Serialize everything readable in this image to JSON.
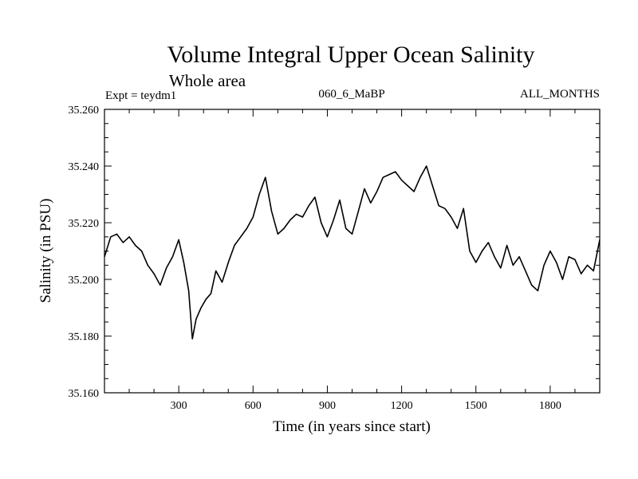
{
  "chart_data": {
    "type": "line",
    "title": "Volume Integral Upper Ocean Salinity",
    "subtitle": "Whole area",
    "left_label": "Expt = teydm1",
    "center_label": "060_6_MaBP",
    "right_label": "ALL_MONTHS",
    "xlabel": "Time (in years since start)",
    "ylabel": "Salinity (in PSU)",
    "xlim": [
      0,
      2000
    ],
    "ylim": [
      35.16,
      35.26
    ],
    "x_ticks": [
      300,
      600,
      900,
      1200,
      1500,
      1800
    ],
    "x_tick_labels": [
      "300",
      "600",
      "900",
      "1200",
      "1500",
      "1800"
    ],
    "y_ticks": [
      35.16,
      35.18,
      35.2,
      35.22,
      35.24,
      35.26
    ],
    "y_tick_labels": [
      "35.160",
      "35.180",
      "35.200",
      "35.220",
      "35.240",
      "35.260"
    ],
    "series": [
      {
        "name": "salinity",
        "x": [
          0,
          25,
          50,
          75,
          100,
          125,
          150,
          175,
          200,
          225,
          250,
          275,
          300,
          320,
          340,
          355,
          370,
          390,
          410,
          430,
          450,
          475,
          500,
          525,
          550,
          575,
          600,
          625,
          650,
          675,
          700,
          725,
          750,
          775,
          800,
          825,
          850,
          875,
          900,
          925,
          950,
          975,
          1000,
          1025,
          1050,
          1075,
          1100,
          1125,
          1150,
          1175,
          1200,
          1225,
          1250,
          1275,
          1300,
          1325,
          1350,
          1375,
          1400,
          1425,
          1450,
          1475,
          1500,
          1525,
          1550,
          1575,
          1600,
          1625,
          1650,
          1675,
          1700,
          1725,
          1750,
          1775,
          1800,
          1825,
          1850,
          1875,
          1900,
          1925,
          1950,
          1975,
          2000
        ],
        "values": [
          35.208,
          35.215,
          35.216,
          35.213,
          35.215,
          35.212,
          35.21,
          35.205,
          35.202,
          35.198,
          35.204,
          35.208,
          35.214,
          35.206,
          35.196,
          35.179,
          35.186,
          35.19,
          35.193,
          35.195,
          35.203,
          35.199,
          35.206,
          35.212,
          35.215,
          35.218,
          35.222,
          35.23,
          35.236,
          35.224,
          35.216,
          35.218,
          35.221,
          35.223,
          35.222,
          35.226,
          35.229,
          35.22,
          35.215,
          35.221,
          35.228,
          35.218,
          35.216,
          35.224,
          35.232,
          35.227,
          35.231,
          35.236,
          35.237,
          35.238,
          35.235,
          35.233,
          35.231,
          35.236,
          35.24,
          35.233,
          35.226,
          35.225,
          35.222,
          35.218,
          35.225,
          35.21,
          35.206,
          35.21,
          35.213,
          35.208,
          35.204,
          35.212,
          35.205,
          35.208,
          35.203,
          35.198,
          35.196,
          35.205,
          35.21,
          35.206,
          35.2,
          35.208,
          35.207,
          35.202,
          35.205,
          35.203,
          35.214
        ]
      }
    ]
  }
}
